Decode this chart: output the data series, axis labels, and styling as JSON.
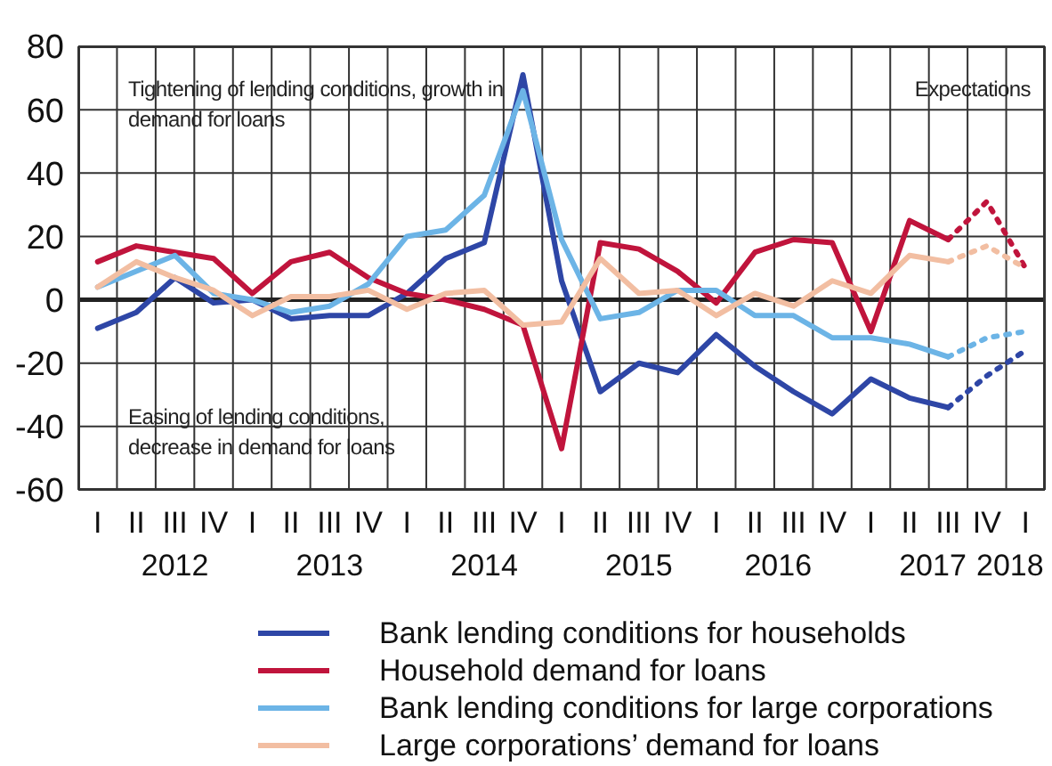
{
  "chart_data": {
    "type": "line",
    "categories": [
      "I",
      "II",
      "III",
      "IV",
      "I",
      "II",
      "III",
      "IV",
      "I",
      "II",
      "III",
      "IV",
      "I",
      "II",
      "III",
      "IV",
      "I",
      "II",
      "III",
      "IV",
      "I",
      "II",
      "III",
      "IV",
      "I"
    ],
    "series": [
      {
        "name": "Bank lending conditions for households",
        "color": "#2e46a6",
        "values": [
          -9,
          -4,
          7,
          -1,
          0,
          -6,
          -5,
          -5,
          2,
          13,
          18,
          71,
          6,
          -29,
          -20,
          -23,
          -11,
          -21,
          -29,
          -36,
          -25,
          -31,
          -34,
          null,
          null
        ]
      },
      {
        "name": "Household demand for loans",
        "color": "#c0143c",
        "values": [
          12,
          17,
          15,
          13,
          2,
          12,
          15,
          7,
          2,
          0,
          -3,
          -8,
          -47,
          18,
          16,
          9,
          -1,
          15,
          19,
          18,
          -10,
          25,
          19,
          null,
          null
        ]
      },
      {
        "name": "Bank lending conditions for large corporations",
        "color": "#6cb4e6",
        "values": [
          4,
          9,
          14,
          2,
          0,
          -4,
          -2,
          5,
          20,
          22,
          33,
          66,
          19,
          -6,
          -4,
          3,
          3,
          -5,
          -5,
          -12,
          -12,
          -14,
          -18,
          null,
          null
        ]
      },
      {
        "name": "Large corporations’ demand for loans",
        "color": "#f2bea2",
        "values": [
          4,
          12,
          7,
          3,
          -5,
          1,
          1,
          3,
          -3,
          2,
          3,
          -8,
          -7,
          13,
          2,
          3,
          -5,
          2,
          -2,
          6,
          2,
          14,
          12,
          null,
          null
        ]
      },
      {
        "color": "#2e46a6",
        "line_style": "dotted",
        "values": [
          null,
          null,
          null,
          null,
          null,
          null,
          null,
          null,
          null,
          null,
          null,
          null,
          null,
          null,
          null,
          null,
          null,
          null,
          null,
          null,
          null,
          null,
          -34,
          -24,
          -16
        ]
      },
      {
        "color": "#c0143c",
        "line_style": "dotted",
        "values": [
          null,
          null,
          null,
          null,
          null,
          null,
          null,
          null,
          null,
          null,
          null,
          null,
          null,
          null,
          null,
          null,
          null,
          null,
          null,
          null,
          null,
          null,
          19,
          31,
          10
        ]
      },
      {
        "color": "#6cb4e6",
        "line_style": "dotted",
        "values": [
          null,
          null,
          null,
          null,
          null,
          null,
          null,
          null,
          null,
          null,
          null,
          null,
          null,
          null,
          null,
          null,
          null,
          null,
          null,
          null,
          null,
          null,
          -18,
          -12,
          -10
        ]
      },
      {
        "color": "#f2bea2",
        "line_style": "dotted",
        "values": [
          null,
          null,
          null,
          null,
          null,
          null,
          null,
          null,
          null,
          null,
          null,
          null,
          null,
          null,
          null,
          null,
          null,
          null,
          null,
          null,
          null,
          null,
          12,
          17,
          10
        ]
      }
    ],
    "ylim": [
      -60,
      80
    ],
    "yticks": [
      -60,
      -40,
      -20,
      0,
      20,
      40,
      60,
      80
    ],
    "grid": true,
    "legend": "bottom",
    "line_style": "solid",
    "marker": "none",
    "ref_lines": [
      {
        "axis": "y",
        "value": 0
      }
    ],
    "annotations": [
      "Tightening of lending conditions, growth in demand for loans",
      "Easing of lending conditions, decrease in demand for loans",
      "Expectations",
      "2012",
      "2013",
      "2014",
      "2015",
      "2016",
      "2017",
      "2018"
    ]
  }
}
